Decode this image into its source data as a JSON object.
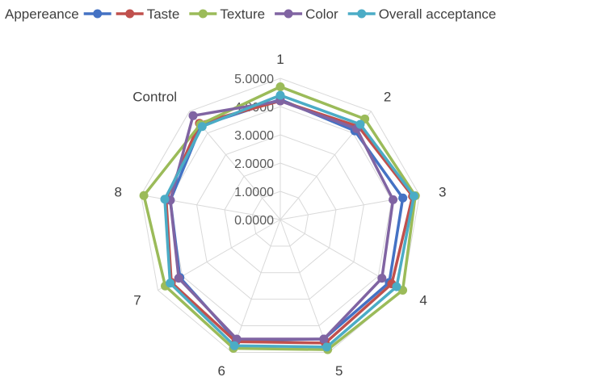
{
  "chart_data": {
    "type": "radar",
    "title": "",
    "categories": [
      "1",
      "2",
      "3",
      "4",
      "5",
      "6",
      "7",
      "8",
      "Control"
    ],
    "rlim": [
      0,
      5
    ],
    "ticks": [
      "0.0000",
      "1.0000",
      "2.0000",
      "3.0000",
      "4.0000",
      "5.0000"
    ],
    "tick_values": [
      0,
      1,
      2,
      3,
      4,
      5
    ],
    "grid": true,
    "legend_position": "top",
    "series": [
      {
        "name": "Appereance",
        "color": "#4472C4",
        "values": [
          4.25,
          4.1,
          4.4,
          4.45,
          4.5,
          4.55,
          4.1,
          3.95,
          4.35
        ]
      },
      {
        "name": "Taste",
        "color": "#C0504D",
        "values": [
          4.2,
          4.3,
          4.75,
          4.55,
          4.65,
          4.6,
          4.45,
          4.1,
          4.45
        ]
      },
      {
        "name": "Texture",
        "color": "#9BBB59",
        "values": [
          4.7,
          4.65,
          4.85,
          5.0,
          4.9,
          4.85,
          4.7,
          4.9,
          4.4
        ]
      },
      {
        "name": "Color",
        "color": "#8064A2",
        "values": [
          4.2,
          4.2,
          4.05,
          4.15,
          4.5,
          4.5,
          4.15,
          3.95,
          4.8
        ]
      },
      {
        "name": "Overall acceptance",
        "color": "#4BACC6",
        "values": [
          4.4,
          4.4,
          4.8,
          4.75,
          4.8,
          4.75,
          4.5,
          4.15,
          4.3
        ]
      }
    ]
  }
}
